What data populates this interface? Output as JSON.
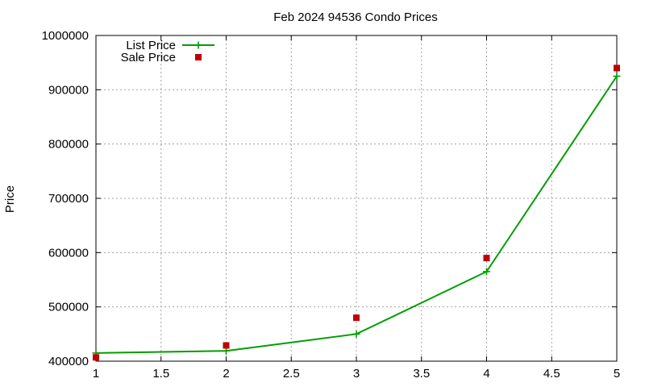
{
  "chart_data": {
    "type": "line",
    "title": "Feb 2024 94536 Condo Prices",
    "xlabel": "",
    "ylabel": "Price",
    "xlim": [
      1,
      5
    ],
    "ylim": [
      400000,
      1000000
    ],
    "x_ticks": [
      "1",
      "1.5",
      "2",
      "2.5",
      "3",
      "3.5",
      "4",
      "4.5",
      "5"
    ],
    "y_ticks": [
      "400000",
      "500000",
      "600000",
      "700000",
      "800000",
      "900000",
      "1000000"
    ],
    "grid": true,
    "legend_position": "top-left",
    "series": [
      {
        "name": "List Price",
        "style": "line+cross",
        "color": "#009e00",
        "x": [
          1,
          2,
          3,
          4,
          5
        ],
        "y": [
          415000,
          419000,
          450000,
          565000,
          925000
        ]
      },
      {
        "name": "Sale Price",
        "style": "square-points",
        "color": "#c00000",
        "x": [
          1,
          2,
          3,
          4,
          5
        ],
        "y": [
          407000,
          429000,
          480000,
          590000,
          940000
        ]
      }
    ]
  }
}
